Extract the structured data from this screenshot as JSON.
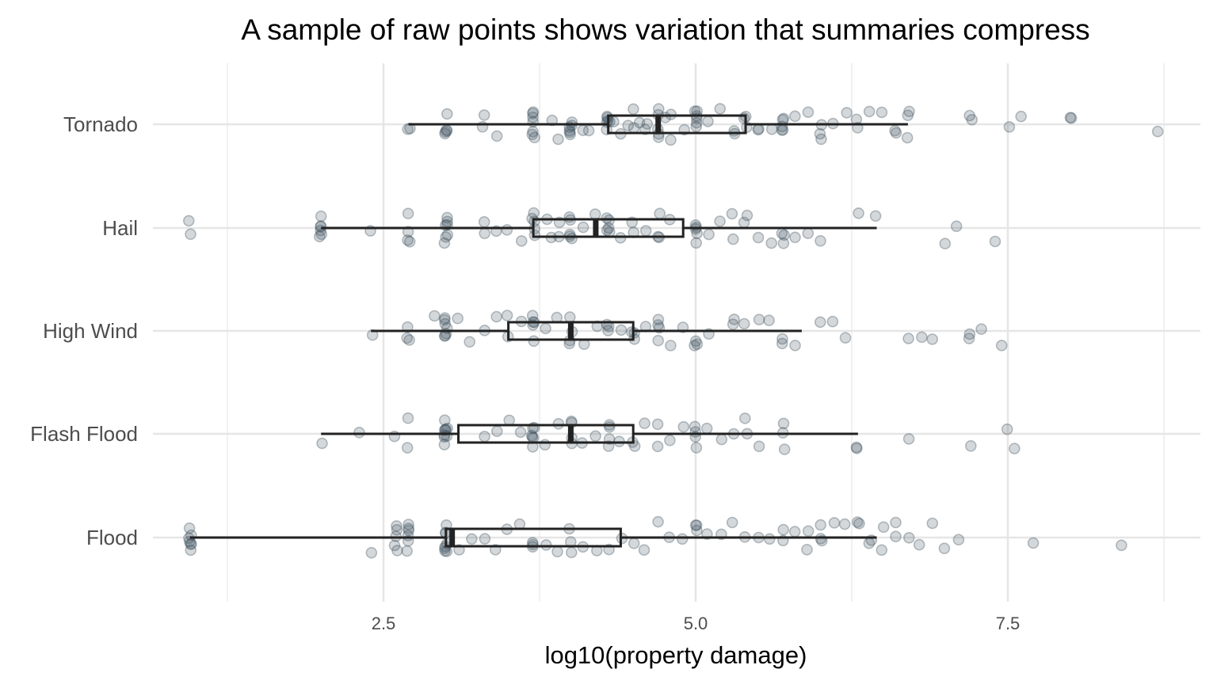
{
  "chart_data": {
    "type": "boxplot-with-jitter",
    "title": "A sample of raw points shows variation that summaries compress",
    "xlabel": "log10(property damage)",
    "ylabel": "",
    "xlim": [
      0.0,
      9.2
    ],
    "x_ticks": [
      2.5,
      5.0,
      7.5
    ],
    "x_tick_labels": [
      "2.5",
      "5.0",
      "7.5"
    ],
    "grid": true,
    "orientation": "horizontal",
    "categories": [
      "Tornado",
      "Hail",
      "High Wind",
      "Flash Flood",
      "Flood"
    ],
    "colors": {
      "point": "#3d4f5c",
      "box": "#222222",
      "grid": "#e6e6e6"
    },
    "series": [
      {
        "category": "Tornado",
        "box": {
          "whisker_low": 2.7,
          "q1": 4.3,
          "median": 4.7,
          "q3": 5.4,
          "whisker_high": 6.7
        },
        "points": [
          2.7,
          2.7,
          3.0,
          3.0,
          3.0,
          3.0,
          3.0,
          3.3,
          3.3,
          3.4,
          3.7,
          3.7,
          3.7,
          3.7,
          3.7,
          3.7,
          3.7,
          3.85,
          3.9,
          4.0,
          4.0,
          4.0,
          4.0,
          4.0,
          4.0,
          4.1,
          4.15,
          4.3,
          4.3,
          4.3,
          4.3,
          4.3,
          4.3,
          4.35,
          4.4,
          4.45,
          4.5,
          4.5,
          4.55,
          4.6,
          4.6,
          4.7,
          4.7,
          4.7,
          4.7,
          4.7,
          4.75,
          4.8,
          4.8,
          4.9,
          5.0,
          5.0,
          5.0,
          5.0,
          5.0,
          5.0,
          5.1,
          5.2,
          5.3,
          5.3,
          5.4,
          5.4,
          5.4,
          5.5,
          5.5,
          5.6,
          5.7,
          5.7,
          5.7,
          5.7,
          5.7,
          5.8,
          5.9,
          6.0,
          6.0,
          6.0,
          6.1,
          6.2,
          6.3,
          6.3,
          6.4,
          6.5,
          6.6,
          6.6,
          6.7,
          6.7,
          6.7,
          7.2,
          7.2,
          7.5,
          7.6,
          8.0,
          8.0,
          8.7
        ]
      },
      {
        "category": "Hail",
        "box": {
          "whisker_low": 2.0,
          "q1": 3.7,
          "median": 4.2,
          "q3": 4.9,
          "whisker_high": 6.45
        },
        "points": [
          0.95,
          0.95,
          2.0,
          2.0,
          2.0,
          2.0,
          2.0,
          2.0,
          2.4,
          2.7,
          2.7,
          2.7,
          2.7,
          3.0,
          3.0,
          3.0,
          3.0,
          3.0,
          3.0,
          3.0,
          3.3,
          3.3,
          3.4,
          3.5,
          3.6,
          3.7,
          3.7,
          3.7,
          3.7,
          3.7,
          3.8,
          3.85,
          3.9,
          3.9,
          4.0,
          4.0,
          4.0,
          4.0,
          4.0,
          4.1,
          4.2,
          4.3,
          4.3,
          4.3,
          4.3,
          4.3,
          4.4,
          4.5,
          4.5,
          4.6,
          4.7,
          4.7,
          4.7,
          4.8,
          5.0,
          5.0,
          5.0,
          5.0,
          5.0,
          5.1,
          5.2,
          5.3,
          5.3,
          5.4,
          5.4,
          5.5,
          5.6,
          5.7,
          5.7,
          5.7,
          5.8,
          5.9,
          6.0,
          6.3,
          6.45,
          7.0,
          7.1,
          7.4
        ]
      },
      {
        "category": "High Wind",
        "box": {
          "whisker_low": 2.4,
          "q1": 3.5,
          "median": 4.0,
          "q3": 4.5,
          "whisker_high": 5.85
        },
        "points": [
          2.4,
          2.7,
          2.7,
          2.7,
          2.9,
          3.0,
          3.0,
          3.0,
          3.0,
          3.0,
          3.0,
          3.0,
          3.1,
          3.2,
          3.3,
          3.4,
          3.5,
          3.5,
          3.6,
          3.7,
          3.7,
          3.7,
          3.7,
          3.7,
          3.8,
          3.9,
          4.0,
          4.0,
          4.0,
          4.0,
          4.1,
          4.2,
          4.3,
          4.3,
          4.3,
          4.4,
          4.5,
          4.5,
          4.5,
          4.6,
          4.7,
          4.7,
          4.7,
          4.7,
          4.8,
          4.9,
          5.0,
          5.0,
          5.0,
          5.1,
          5.3,
          5.3,
          5.4,
          5.5,
          5.6,
          5.7,
          5.7,
          5.8,
          6.0,
          6.1,
          6.2,
          6.7,
          6.8,
          6.9,
          7.2,
          7.2,
          7.3,
          7.45
        ]
      },
      {
        "category": "Flash Flood",
        "box": {
          "whisker_low": 2.0,
          "q1": 3.1,
          "median": 4.0,
          "q3": 4.5,
          "whisker_high": 6.3
        },
        "points": [
          2.0,
          2.3,
          2.6,
          2.7,
          2.7,
          3.0,
          3.0,
          3.0,
          3.0,
          3.0,
          3.0,
          3.0,
          3.0,
          3.0,
          3.3,
          3.4,
          3.5,
          3.6,
          3.7,
          3.7,
          3.7,
          3.7,
          3.7,
          3.7,
          3.8,
          3.9,
          4.0,
          4.0,
          4.0,
          4.0,
          4.1,
          4.2,
          4.3,
          4.3,
          4.3,
          4.3,
          4.4,
          4.5,
          4.5,
          4.6,
          4.7,
          4.7,
          4.8,
          4.9,
          5.0,
          5.0,
          5.0,
          5.0,
          5.1,
          5.2,
          5.3,
          5.4,
          5.4,
          5.5,
          5.7,
          5.7,
          5.7,
          6.3,
          6.3,
          6.7,
          7.2,
          7.5,
          7.55
        ]
      },
      {
        "category": "Flood",
        "box": {
          "whisker_low": 0.95,
          "q1": 3.0,
          "median": 3.05,
          "q3": 4.4,
          "whisker_high": 6.45
        },
        "points": [
          0.95,
          0.95,
          0.95,
          0.95,
          0.95,
          0.95,
          0.95,
          2.4,
          2.6,
          2.6,
          2.6,
          2.6,
          2.6,
          2.7,
          2.7,
          2.7,
          2.7,
          2.7,
          2.7,
          3.0,
          3.0,
          3.0,
          3.0,
          3.0,
          3.0,
          3.0,
          3.0,
          3.1,
          3.2,
          3.3,
          3.4,
          3.5,
          3.6,
          3.7,
          3.7,
          3.7,
          3.8,
          3.9,
          4.0,
          4.0,
          4.0,
          4.1,
          4.2,
          4.3,
          4.4,
          4.5,
          4.6,
          4.7,
          4.8,
          4.9,
          5.0,
          5.0,
          5.0,
          5.1,
          5.2,
          5.3,
          5.4,
          5.5,
          5.6,
          5.7,
          5.7,
          5.8,
          5.9,
          5.9,
          6.0,
          6.0,
          6.0,
          6.1,
          6.2,
          6.3,
          6.3,
          6.4,
          6.4,
          6.5,
          6.5,
          6.6,
          6.6,
          6.7,
          6.8,
          6.9,
          7.0,
          7.1,
          7.7,
          8.4
        ]
      }
    ]
  }
}
